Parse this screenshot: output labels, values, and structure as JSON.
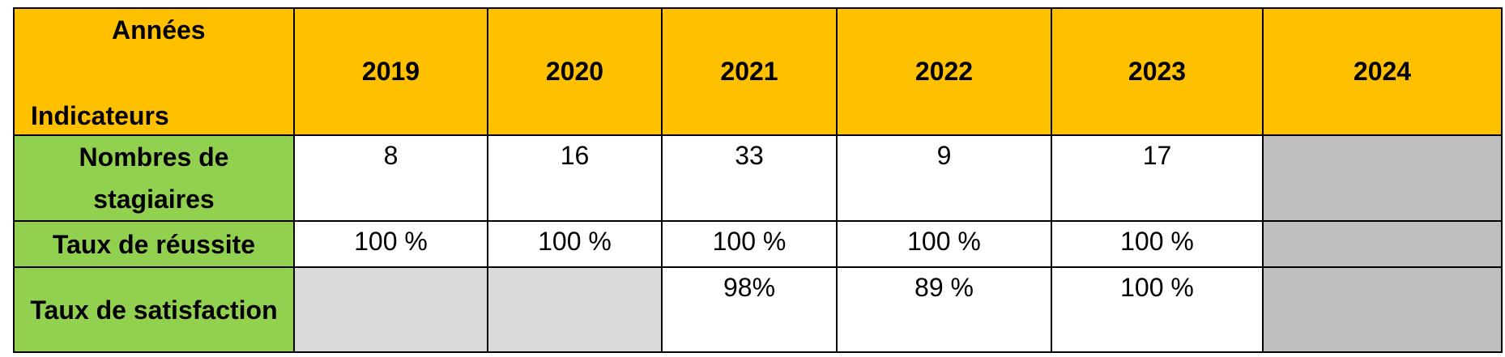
{
  "header": {
    "corner_top": "Années",
    "corner_bottom": "Indicateurs",
    "years": [
      "2019",
      "2020",
      "2021",
      "2022",
      "2023",
      "2024"
    ]
  },
  "table": {
    "rows": [
      {
        "label": "Nombres de stagiaires",
        "cells": [
          "8",
          "16",
          "33",
          "9",
          "17",
          null
        ]
      },
      {
        "label": "Taux de réussite",
        "cells": [
          "100 %",
          "100 %",
          "100 %",
          "100 %",
          "100 %",
          null
        ]
      },
      {
        "label": "Taux de satisfaction",
        "cells": [
          null,
          null,
          "98%",
          "89 %",
          "100 %",
          null
        ]
      }
    ]
  }
}
